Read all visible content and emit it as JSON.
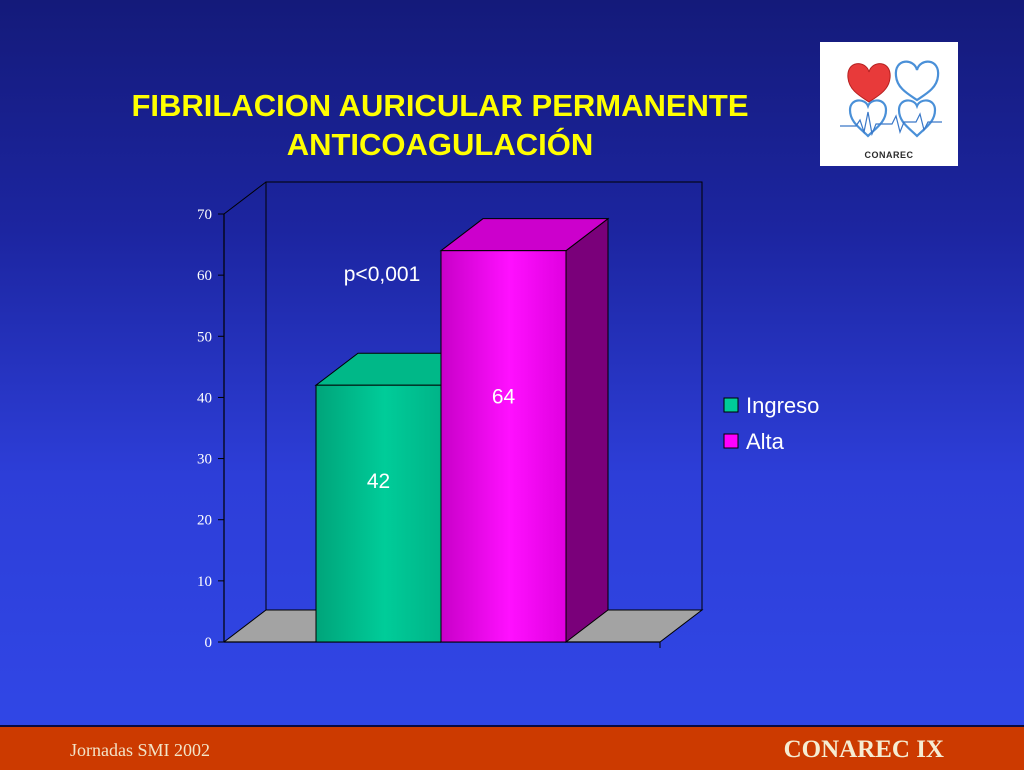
{
  "slide": {
    "title_line1": "FIBRILACION AURICULAR PERMANENTE",
    "title_line2": "ANTICOAGULACIÓN",
    "annotation": "p<0,001",
    "footer_left": "Jornadas SMI 2002",
    "footer_right": "CONAREC IX"
  },
  "logo": {
    "name": "conarec-logo",
    "text": "CONAREC"
  },
  "chart_data": {
    "type": "bar",
    "style": "3d",
    "title": "FIBRILACION AURICULAR PERMANENTE ANTICOAGULACIÓN",
    "xlabel": "",
    "ylabel": "",
    "ylim": [
      0,
      70
    ],
    "yticks": [
      0,
      10,
      20,
      30,
      40,
      50,
      60,
      70
    ],
    "series": [
      {
        "name": "Ingreso",
        "value": 42,
        "color": "#00cc99"
      },
      {
        "name": "Alta",
        "value": 64,
        "color": "#ff00ff"
      }
    ],
    "data_labels": [
      "42",
      "64"
    ],
    "legend": {
      "placement": "right",
      "entries": [
        "Ingreso",
        "Alta"
      ]
    },
    "annotation": "p<0,001",
    "grid": false
  }
}
